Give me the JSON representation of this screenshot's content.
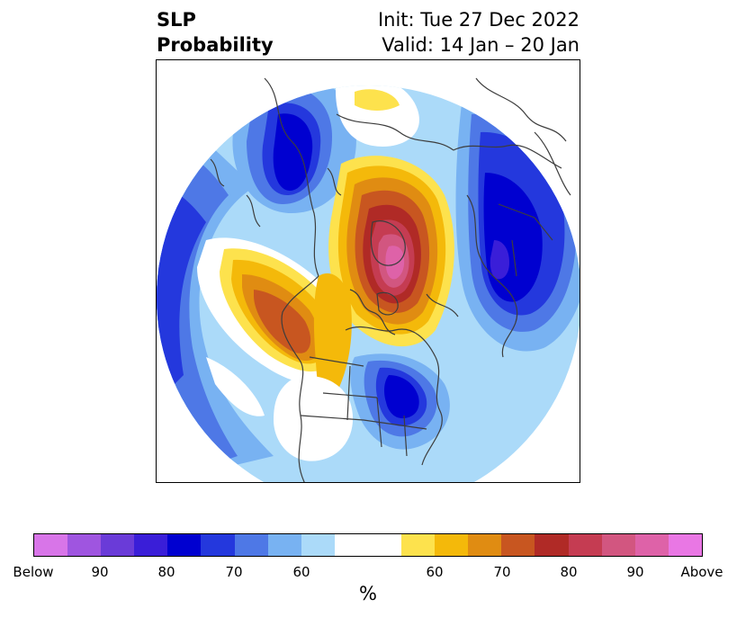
{
  "title": {
    "left_line1": "SLP",
    "left_line2": "Probability",
    "right_line1": "Init: Tue 27 Dec 2022",
    "right_line2": "Valid: 14 Jan – 20 Jan"
  },
  "colorbar": {
    "colors": [
      "#d875e8",
      "#9f55e0",
      "#6a3bd8",
      "#3a1ed8",
      "#0000d0",
      "#2438dd",
      "#4e78e6",
      "#78b2f2",
      "#abdaf9",
      "#ffffff",
      "#ffffff",
      "#fde24d",
      "#f4b90a",
      "#e08c12",
      "#c85620",
      "#b02a26",
      "#c53c52",
      "#d25680",
      "#de62a8",
      "#e977e4"
    ],
    "labels": [
      "Below",
      "90",
      "80",
      "70",
      "60",
      "60",
      "70",
      "80",
      "90",
      "Above"
    ],
    "unit": "%"
  },
  "colors": {
    "land_line": "#3d3d3d",
    "frame": "#000000"
  }
}
